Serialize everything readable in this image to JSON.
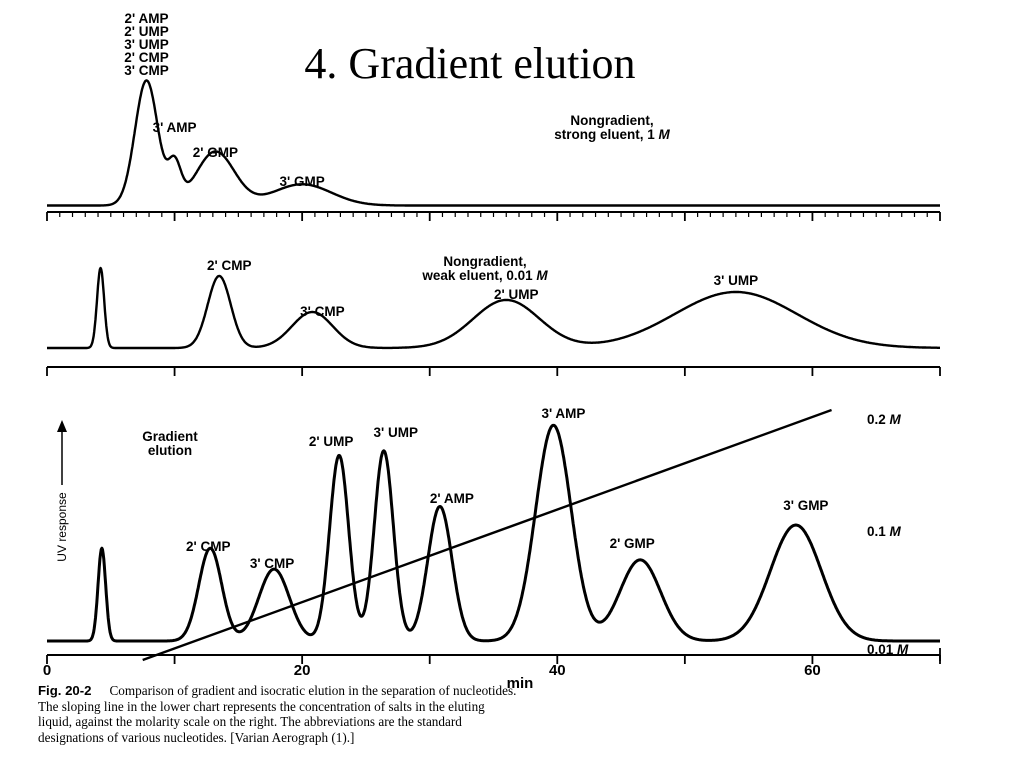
{
  "slide": {
    "title": "4. Gradient elution"
  },
  "caption": {
    "lead": "Fig. 20-2",
    "lines": [
      "Comparison of gradient and isocratic elution in the separation of nucleotides.",
      "The sloping line in the lower chart represents the concentration of salts in the eluting",
      "liquid, against the molarity scale on the right.   The abbreviations are the standard",
      "designations of various nucleotides.   [Varian Aerograph (1).]"
    ]
  },
  "chart_data": [
    {
      "type": "line",
      "condition": "Nongradient, strong eluent, 1 M",
      "condition_lines": [
        "Nongradient,",
        "strong eluent, 1 M"
      ],
      "xlim": [
        0,
        70
      ],
      "x_ticks_count": 70,
      "baseline": 0.02,
      "peaks": [
        {
          "label": "2' AMP\n2' UMP\n3' UMP\n2' CMP\n3' CMP",
          "labels": [
            "2' AMP",
            "2' UMP",
            "3' UMP",
            "2' CMP",
            "3' CMP"
          ],
          "t": 7.8,
          "height": 1.0,
          "width": 0.9
        },
        {
          "label": "3' AMP",
          "t": 10.0,
          "height": 0.3,
          "width": 0.5
        },
        {
          "label": "2' GMP",
          "t": 13.2,
          "height": 0.43,
          "width": 1.5
        },
        {
          "label": "3' GMP",
          "t": 20.0,
          "height": 0.17,
          "width": 2.3
        }
      ]
    },
    {
      "type": "line",
      "condition": "Nongradient, weak eluent, 0.01 M",
      "condition_lines": [
        "Nongradient,",
        "weak eluent, 0.01 M"
      ],
      "xlim": [
        0,
        70
      ],
      "baseline": 0.05,
      "peaks": [
        {
          "label": "",
          "t": 4.2,
          "height": 1.0,
          "width": 0.28
        },
        {
          "label": "2' CMP",
          "t": 13.5,
          "height": 0.9,
          "width": 0.9
        },
        {
          "label": "3' CMP",
          "t": 20.8,
          "height": 0.45,
          "width": 1.6
        },
        {
          "label": "2' UMP",
          "t": 36.0,
          "height": 0.6,
          "width": 2.6
        },
        {
          "label": "3' UMP",
          "t": 54.0,
          "height": 0.7,
          "width": 4.8
        }
      ]
    },
    {
      "type": "line",
      "condition": "Gradient elution",
      "condition_lines": [
        "Gradient",
        "elution"
      ],
      "xlabel": "min",
      "ylabel": "UV response",
      "xlim": [
        0,
        70
      ],
      "x_ticks": [
        0,
        20,
        40,
        60
      ],
      "molarity_scale": [
        "0.2 M",
        "0.1 M",
        "0.01 M"
      ],
      "gradient_line": {
        "start": [
          7.5,
          0.0
        ],
        "end": [
          61.5,
          0.2
        ]
      },
      "baseline": 0.03,
      "peaks": [
        {
          "label": "",
          "t": 4.3,
          "height": 0.4,
          "width": 0.3
        },
        {
          "label": "2' CMP",
          "t": 12.8,
          "height": 0.4,
          "width": 0.9
        },
        {
          "label": "3' CMP",
          "t": 17.8,
          "height": 0.31,
          "width": 1.2
        },
        {
          "label": "2' UMP",
          "t": 22.9,
          "height": 0.8,
          "width": 0.75
        },
        {
          "label": "3' UMP",
          "t": 26.4,
          "height": 0.82,
          "width": 0.75
        },
        {
          "label": "2' AMP",
          "t": 30.8,
          "height": 0.58,
          "width": 0.95
        },
        {
          "label": "3' AMP",
          "t": 39.7,
          "height": 0.93,
          "width": 1.4
        },
        {
          "label": "2' GMP",
          "t": 46.5,
          "height": 0.35,
          "width": 1.6
        },
        {
          "label": "3' GMP",
          "t": 58.7,
          "height": 0.5,
          "width": 2.0
        }
      ]
    }
  ]
}
